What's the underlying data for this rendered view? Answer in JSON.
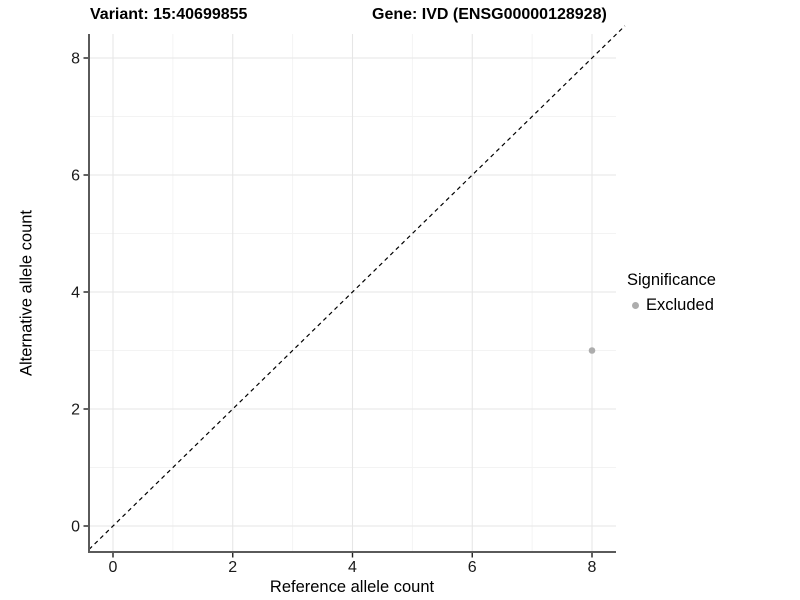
{
  "figure": {
    "title_left": "Variant: 15:40699855",
    "title_right": "Gene: IVD (ENSG00000128928)",
    "x_axis_label": "Reference allele count",
    "y_axis_label": "Alternative allele count",
    "legend_title": "Significance",
    "legend_item": "Excluded"
  },
  "colors": {
    "point": "#adadad",
    "grid_major": "#e6e6e6",
    "grid_minor": "#f3f3f3",
    "axis_line": "#5a5a5a",
    "tick": "#1f1f1f",
    "tick_label": "#1a1a1a",
    "reference_line": "#000000"
  },
  "chart_data": {
    "type": "scatter",
    "title": "Variant: 15:40699855 | Gene: IVD (ENSG00000128928)",
    "xlabel": "Reference allele count",
    "ylabel": "Alternative allele count",
    "xticks": [
      0,
      2,
      4,
      6,
      8
    ],
    "yticks": [
      0,
      2,
      4,
      6,
      8
    ],
    "xlim": [
      -0.4,
      8.4
    ],
    "ylim": [
      -0.4,
      8.4
    ],
    "grid": {
      "major": true,
      "minor": true
    },
    "reference_line": {
      "kind": "identity",
      "equation": "y = x",
      "style": "dashed",
      "color": "#000000"
    },
    "series": [
      {
        "name": "Excluded",
        "color": "#adadad",
        "points": [
          {
            "x": 8,
            "y": 3
          }
        ]
      }
    ],
    "legend": {
      "title": "Significance",
      "position": "right",
      "entries": [
        "Excluded"
      ]
    }
  }
}
